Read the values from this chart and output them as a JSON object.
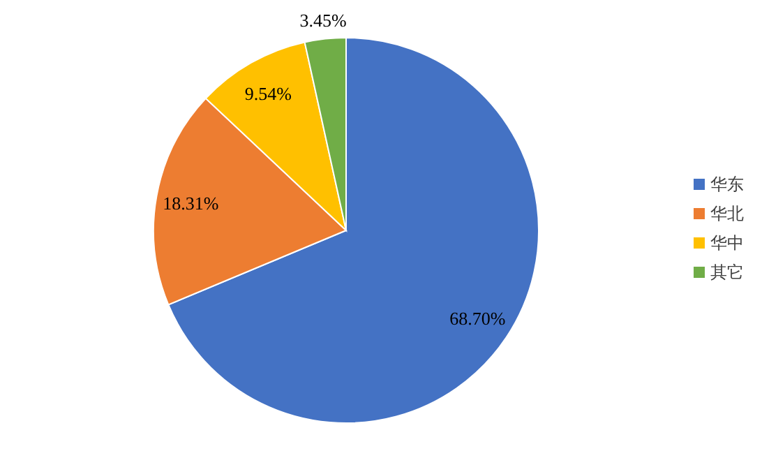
{
  "chart_data": {
    "type": "pie",
    "categories": [
      "华东",
      "华北",
      "华中",
      "其它"
    ],
    "values": [
      68.7,
      18.31,
      9.54,
      3.45
    ],
    "value_labels": [
      "68.70%",
      "18.31%",
      "9.54%",
      "3.45%"
    ],
    "colors": [
      "#4472c4",
      "#ed7d31",
      "#ffc000",
      "#70ad47"
    ],
    "legend": "right"
  }
}
